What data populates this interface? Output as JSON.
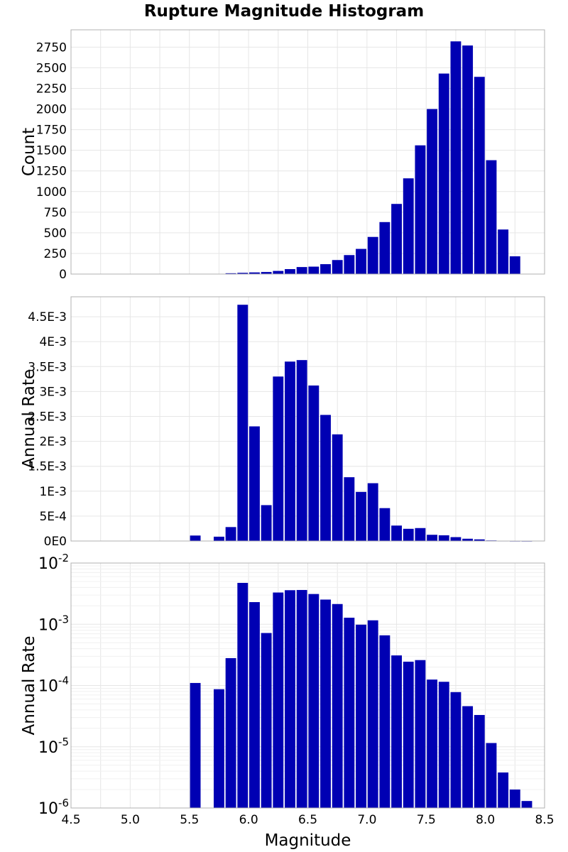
{
  "title": "Rupture Magnitude Histogram",
  "bar_color": "#0000b3",
  "chart_data": [
    {
      "type": "bar",
      "ylabel": "Count",
      "xlim": [
        4.5,
        8.5
      ],
      "ylim": [
        0,
        2960
      ],
      "yscale": "linear",
      "grid": true,
      "bin_width": 0.1,
      "y_ticks": [
        {
          "v": 0,
          "t": "0"
        },
        {
          "v": 250,
          "t": "250"
        },
        {
          "v": 500,
          "t": "500"
        },
        {
          "v": 750,
          "t": "750"
        },
        {
          "v": 1000,
          "t": "1000"
        },
        {
          "v": 1250,
          "t": "1250"
        },
        {
          "v": 1500,
          "t": "1500"
        },
        {
          "v": 1750,
          "t": "1750"
        },
        {
          "v": 2000,
          "t": "2000"
        },
        {
          "v": 2250,
          "t": "2250"
        },
        {
          "v": 2500,
          "t": "2500"
        },
        {
          "v": 2750,
          "t": "2750"
        }
      ],
      "x": [
        5.55,
        5.75,
        5.85,
        5.95,
        6.05,
        6.15,
        6.25,
        6.35,
        6.45,
        6.55,
        6.65,
        6.75,
        6.85,
        6.95,
        7.05,
        7.15,
        7.25,
        7.35,
        7.45,
        7.55,
        7.65,
        7.75,
        7.85,
        7.95,
        8.05,
        8.15,
        8.25
      ],
      "values": [
        4,
        3,
        10,
        15,
        20,
        25,
        38,
        60,
        85,
        90,
        120,
        170,
        230,
        305,
        450,
        630,
        850,
        1160,
        1560,
        2000,
        2430,
        2820,
        2770,
        2390,
        1380,
        540,
        215
      ]
    },
    {
      "type": "bar",
      "ylabel": "Annual Rate",
      "xlim": [
        4.5,
        8.5
      ],
      "ylim": [
        0,
        0.0049
      ],
      "yscale": "linear",
      "grid": true,
      "bin_width": 0.1,
      "y_ticks": [
        {
          "v": 0,
          "t": "0E0"
        },
        {
          "v": 0.0005,
          "t": "5E-4"
        },
        {
          "v": 0.001,
          "t": "1E-3"
        },
        {
          "v": 0.0015,
          "t": "1.5E-3"
        },
        {
          "v": 0.002,
          "t": "2E-3"
        },
        {
          "v": 0.0025,
          "t": "2.5E-3"
        },
        {
          "v": 0.003,
          "t": "3E-3"
        },
        {
          "v": 0.0035,
          "t": "3.5E-3"
        },
        {
          "v": 0.004,
          "t": "4E-3"
        },
        {
          "v": 0.0045,
          "t": "4.5E-3"
        }
      ],
      "x": [
        5.55,
        5.75,
        5.85,
        5.95,
        6.05,
        6.15,
        6.25,
        6.35,
        6.45,
        6.55,
        6.65,
        6.75,
        6.85,
        6.95,
        7.05,
        7.15,
        7.25,
        7.35,
        7.45,
        7.55,
        7.65,
        7.75,
        7.85,
        7.95,
        8.05,
        8.15,
        8.25,
        8.35
      ],
      "values": [
        0.00011,
        8.7e-05,
        0.00028,
        0.00474,
        0.0023,
        0.00072,
        0.0033,
        0.0036,
        0.00363,
        0.00312,
        0.00253,
        0.00214,
        0.00128,
        0.000985,
        0.00116,
        0.00066,
        0.00031,
        0.000245,
        0.00026,
        0.000125,
        0.000115,
        7.8e-05,
        4.6e-05,
        3.3e-05,
        1.15e-05,
        3.8e-06,
        2e-06,
        1.3e-06
      ]
    },
    {
      "type": "bar",
      "ylabel": "Annual Rate",
      "xlabel": "Magnitude",
      "xlim": [
        4.5,
        8.5
      ],
      "ylim": [
        1e-06,
        0.01
      ],
      "yscale": "log",
      "grid": true,
      "bin_width": 0.1,
      "y_ticks": [
        {
          "v": 1e-06,
          "base": "10",
          "exp": "-6"
        },
        {
          "v": 1e-05,
          "base": "10",
          "exp": "-5"
        },
        {
          "v": 0.0001,
          "base": "10",
          "exp": "-4"
        },
        {
          "v": 0.001,
          "base": "10",
          "exp": "-3"
        },
        {
          "v": 0.01,
          "base": "10",
          "exp": "-2"
        }
      ],
      "x_ticks": [
        "4.5",
        "5.0",
        "5.5",
        "6.0",
        "6.5",
        "7.0",
        "7.5",
        "8.0",
        "8.5"
      ],
      "x": [
        5.55,
        5.75,
        5.85,
        5.95,
        6.05,
        6.15,
        6.25,
        6.35,
        6.45,
        6.55,
        6.65,
        6.75,
        6.85,
        6.95,
        7.05,
        7.15,
        7.25,
        7.35,
        7.45,
        7.55,
        7.65,
        7.75,
        7.85,
        7.95,
        8.05,
        8.15,
        8.25,
        8.35
      ],
      "values": [
        0.00011,
        8.7e-05,
        0.00028,
        0.00474,
        0.0023,
        0.00072,
        0.0033,
        0.0036,
        0.00363,
        0.00312,
        0.00253,
        0.00214,
        0.00128,
        0.000985,
        0.00116,
        0.00066,
        0.00031,
        0.000245,
        0.00026,
        0.000125,
        0.000115,
        7.8e-05,
        4.6e-05,
        3.3e-05,
        1.15e-05,
        3.8e-06,
        2e-06,
        1.3e-06
      ]
    }
  ]
}
